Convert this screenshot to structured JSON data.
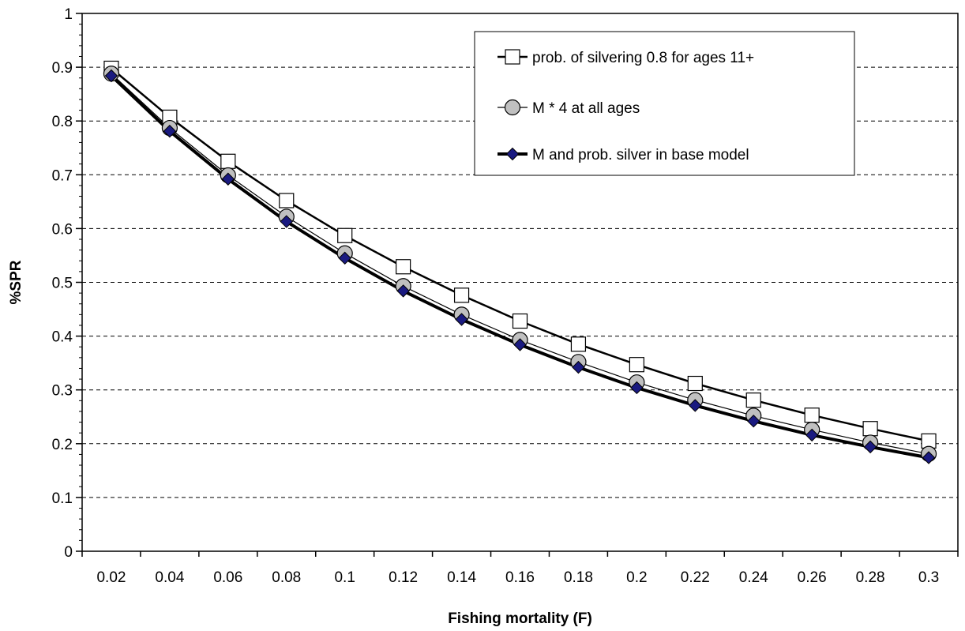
{
  "chart_data": {
    "type": "line",
    "title": "",
    "xlabel": "Fishing mortality (F)",
    "ylabel": "%SPR",
    "categories": [
      "0.02",
      "0.04",
      "0.06",
      "0.08",
      "0.1",
      "0.12",
      "0.14",
      "0.16",
      "0.18",
      "0.2",
      "0.22",
      "0.24",
      "0.26",
      "0.28",
      "0.3"
    ],
    "x": [
      0.02,
      0.04,
      0.06,
      0.08,
      0.1,
      0.12,
      0.14,
      0.16,
      0.18,
      0.2,
      0.22,
      0.24,
      0.26,
      0.28,
      0.3
    ],
    "ylim": [
      0,
      1
    ],
    "yticks": [
      "0",
      "0.1",
      "0.2",
      "0.3",
      "0.4",
      "0.5",
      "0.6",
      "0.7",
      "0.8",
      "0.9",
      "1"
    ],
    "grid": "horizontal dashed",
    "legend_position": "top-right",
    "series": [
      {
        "name": "prob. of silvering 0.8 for ages 11+",
        "marker": "square",
        "color": "#000000",
        "marker_fill": "#ffffff",
        "values": [
          0.898,
          0.807,
          0.725,
          0.652,
          0.587,
          0.529,
          0.476,
          0.428,
          0.385,
          0.347,
          0.312,
          0.281,
          0.253,
          0.228,
          0.205
        ]
      },
      {
        "name": "M * 4 at all ages",
        "marker": "circle",
        "color": "#000000",
        "marker_fill": "#c0c0c0",
        "values": [
          0.888,
          0.787,
          0.699,
          0.622,
          0.554,
          0.493,
          0.44,
          0.393,
          0.352,
          0.314,
          0.281,
          0.252,
          0.226,
          0.202,
          0.181
        ]
      },
      {
        "name": "M and prob. silver in base model",
        "marker": "diamond",
        "color": "#000000",
        "marker_fill": "#1a1a80",
        "values": [
          0.884,
          0.781,
          0.692,
          0.613,
          0.545,
          0.484,
          0.431,
          0.384,
          0.342,
          0.304,
          0.271,
          0.242,
          0.216,
          0.194,
          0.174
        ]
      }
    ]
  }
}
